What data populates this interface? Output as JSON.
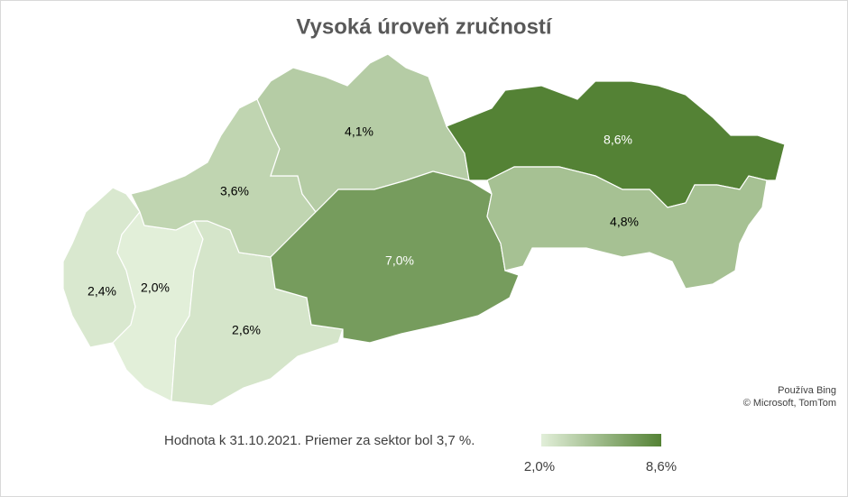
{
  "chart_data": {
    "type": "choropleth",
    "title": "Vysoká úroveň zručností",
    "values": [
      2.4,
      2.0,
      2.6,
      3.6,
      4.1,
      7.0,
      8.6,
      4.8
    ],
    "value_labels": [
      "2,4%",
      "2,0%",
      "2,6%",
      "3,6%",
      "4,1%",
      "7,0%",
      "8,6%",
      "4,8%"
    ],
    "colorscale": {
      "range": [
        {
          "value": 2.0,
          "label": "2,0%"
        },
        {
          "value": 8.6,
          "label": "8,6%"
        }
      ],
      "colors": [
        "#e2efd9",
        "#548235"
      ]
    },
    "footnote": "Hodnota k 31.10.2021. Priemer za sektor bol 3,7 %.",
    "attribution": [
      "Používa Bing",
      "© Microsoft, TomTom"
    ]
  }
}
